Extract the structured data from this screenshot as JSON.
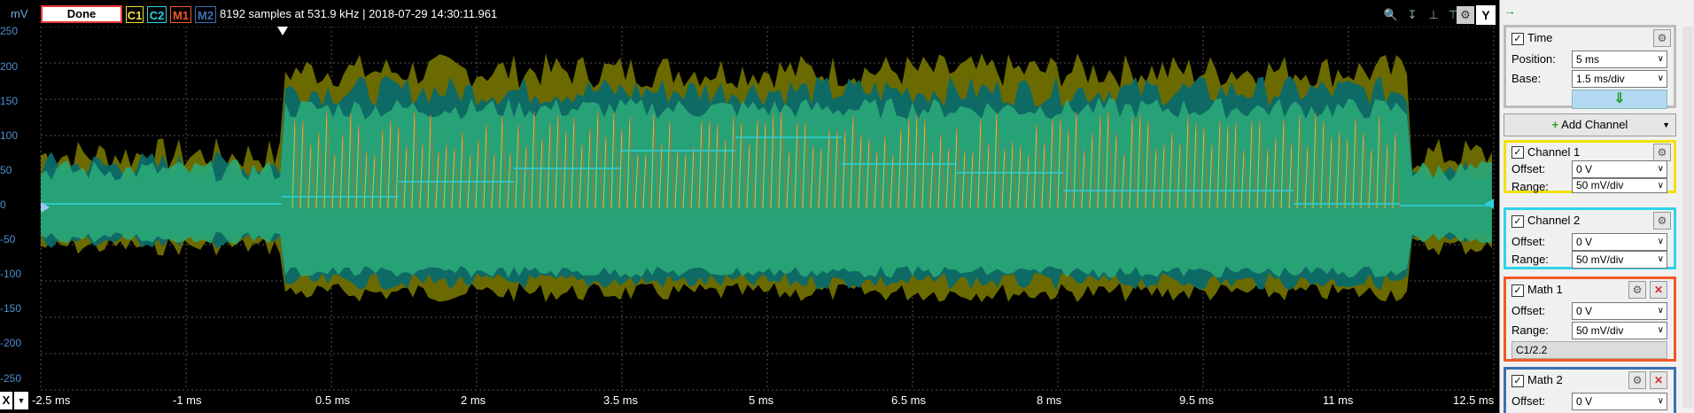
{
  "toolbar": {
    "unit": "mV",
    "status": "Done",
    "badges": [
      "C1",
      "C2",
      "M1",
      "M2"
    ],
    "info": "8192 samples at 531.9 kHz  |  2018-07-29 14:30:11.961",
    "y_button": "Y"
  },
  "y_axis": {
    "labels": [
      "250",
      "200",
      "150",
      "100",
      "50",
      "0",
      "-50",
      "-100",
      "-150",
      "-200",
      "-250"
    ]
  },
  "x_axis": {
    "labels": [
      "-2.5 ms",
      "-1 ms",
      "0.5 ms",
      "2 ms",
      "3.5 ms",
      "5 ms",
      "6.5 ms",
      "8 ms",
      "9.5 ms",
      "11 ms",
      "12.5 ms"
    ],
    "x_button": "X"
  },
  "colors": {
    "c1": "#f0e040",
    "c2": "#30d0e0",
    "m1": "#f05a24",
    "m2": "#3a70b0",
    "c1_env": "#6b6a00",
    "c2_env": "#0a6a6a",
    "overlap": "#2aa878"
  },
  "panel": {
    "time": {
      "title": "Time",
      "position_label": "Position:",
      "position_value": "5 ms",
      "base_label": "Base:",
      "base_value": "1.5 ms/div"
    },
    "add_channel": "Add Channel",
    "channel1": {
      "title": "Channel 1",
      "offset_label": "Offset:",
      "offset_value": "0 V",
      "range_label": "Range:",
      "range_value": "50 mV/div"
    },
    "channel2": {
      "title": "Channel 2",
      "offset_label": "Offset:",
      "offset_value": "0 V",
      "range_label": "Range:",
      "range_value": "50 mV/div"
    },
    "math1": {
      "title": "Math 1",
      "offset_label": "Offset:",
      "offset_value": "0 V",
      "range_label": "Range:",
      "range_value": "50 mV/div",
      "expression": "C1/2.2"
    },
    "math2": {
      "title": "Math 2",
      "offset_label": "Offset:",
      "offset_value": "0 V"
    }
  }
}
